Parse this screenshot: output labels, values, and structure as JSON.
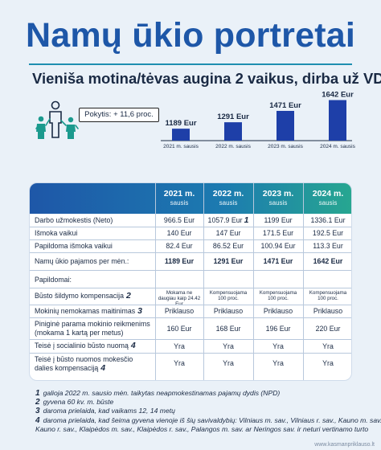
{
  "header": {
    "title": "Namų ūkio portretai",
    "subtitle": "Vieniša motina/tėvas augina 2 vaikus, dirba už  VDU"
  },
  "badge": "Pokytis: + 11,6 proc.",
  "icons": {
    "family": "family-icon"
  },
  "colors": {
    "title": "#1e57a8",
    "bars": "#1e3fa8",
    "header_start": "#1e57a8",
    "header_end": "#27a790"
  },
  "chart_data": {
    "type": "bar",
    "categories": [
      "2021 m. sausis",
      "2022 m. sausis",
      "2023 m. sausis",
      "2024 m. sausis"
    ],
    "values": [
      1189,
      1291,
      1471,
      1642
    ],
    "data_labels": [
      "1189 Eur",
      "1291 Eur",
      "1471 Eur",
      "1642 Eur"
    ],
    "title": "",
    "xlabel": "",
    "ylabel": "",
    "ylim": [
      1000,
      1700
    ],
    "grid": false
  },
  "table": {
    "columns": [
      {
        "year": "2021 m.",
        "month": "sausis"
      },
      {
        "year": "2022 m.",
        "month": "sausis"
      },
      {
        "year": "2023 m.",
        "month": "sausis"
      },
      {
        "year": "2024 m.",
        "month": "sausis"
      }
    ],
    "rows": [
      {
        "label": "Darbo užmokestis (Neto)",
        "note": "",
        "values": [
          "966.5 Eur",
          "1057.9 Eur",
          "1199 Eur",
          "1336.1 Eur"
        ],
        "value_notes": [
          "",
          "1",
          "",
          ""
        ]
      },
      {
        "label": "Išmoka vaikui",
        "note": "",
        "values": [
          "140 Eur",
          "147 Eur",
          "171.5 Eur",
          "192.5 Eur"
        ],
        "value_notes": [
          "",
          "",
          "",
          ""
        ]
      },
      {
        "label": "Papildoma išmoka vaikui",
        "note": "",
        "values": [
          "82.4 Eur",
          "86.52 Eur",
          "100.94 Eur",
          "113.3 Eur"
        ],
        "value_notes": [
          "",
          "",
          "",
          ""
        ]
      },
      {
        "label": "Namų ūkio pajamos per mėn.:",
        "note": "",
        "values": [
          "1189 Eur",
          "1291 Eur",
          "1471 Eur",
          "1642 Eur"
        ],
        "value_notes": [
          "",
          "",
          "",
          ""
        ]
      }
    ],
    "additional_label": "Papildomai:",
    "extra_rows": [
      {
        "label": "Būsto šildymo kompensacija",
        "note": "2",
        "values": [
          "Mokama ne daugiau kaip 24.42 Eur",
          "Kompensuojama 100 proc.",
          "Kompensuojama 100 proc.",
          "Kompensuojama 100 proc."
        ]
      },
      {
        "label": "Mokinių nemokamas maitinimas",
        "note": "3",
        "values": [
          "Priklauso",
          "Priklauso",
          "Priklauso",
          "Priklauso"
        ]
      },
      {
        "label": "Piniginė parama mokinio reikmenims",
        "label2": "(mokama 1 kartą per metus)",
        "note": "",
        "values": [
          "160 Eur",
          "168 Eur",
          "196 Eur",
          "220 Eur"
        ]
      },
      {
        "label": "Teisė į socialinio būsto nuomą",
        "note": "4",
        "values": [
          "Yra",
          "Yra",
          "Yra",
          "Yra"
        ]
      },
      {
        "label": "Teisė į būsto nuomos mokesčio",
        "label2": "dalies kompensaciją",
        "note": "4",
        "values": [
          "Yra",
          "Yra",
          "Yra",
          "Yra"
        ]
      }
    ]
  },
  "footnotes": [
    {
      "num": "1",
      "text": "galioja 2022 m. sausio mėn. taikytas neapmokestinamas pajamų dydis (NPD)"
    },
    {
      "num": "2",
      "text": "gyvena 60 kv. m. būste"
    },
    {
      "num": "3",
      "text": "daroma prielaida, kad vaikams 12, 14 metų"
    },
    {
      "num": "4",
      "text": "daroma prielaida, kad šeima gyvena vienoje iš šių savivaldybių: Vilniaus m. sav., Vilniaus r. sav., Kauno m. sav.,"
    },
    {
      "num": "",
      "text": "Kauno r. sav., Klaipėdos m. sav., Klaipėdos r. sav., Palangos m. sav. ar Neringos sav. ir neturi vertinamo turto"
    }
  ],
  "site": "www.kasmanpriklauso.lt"
}
